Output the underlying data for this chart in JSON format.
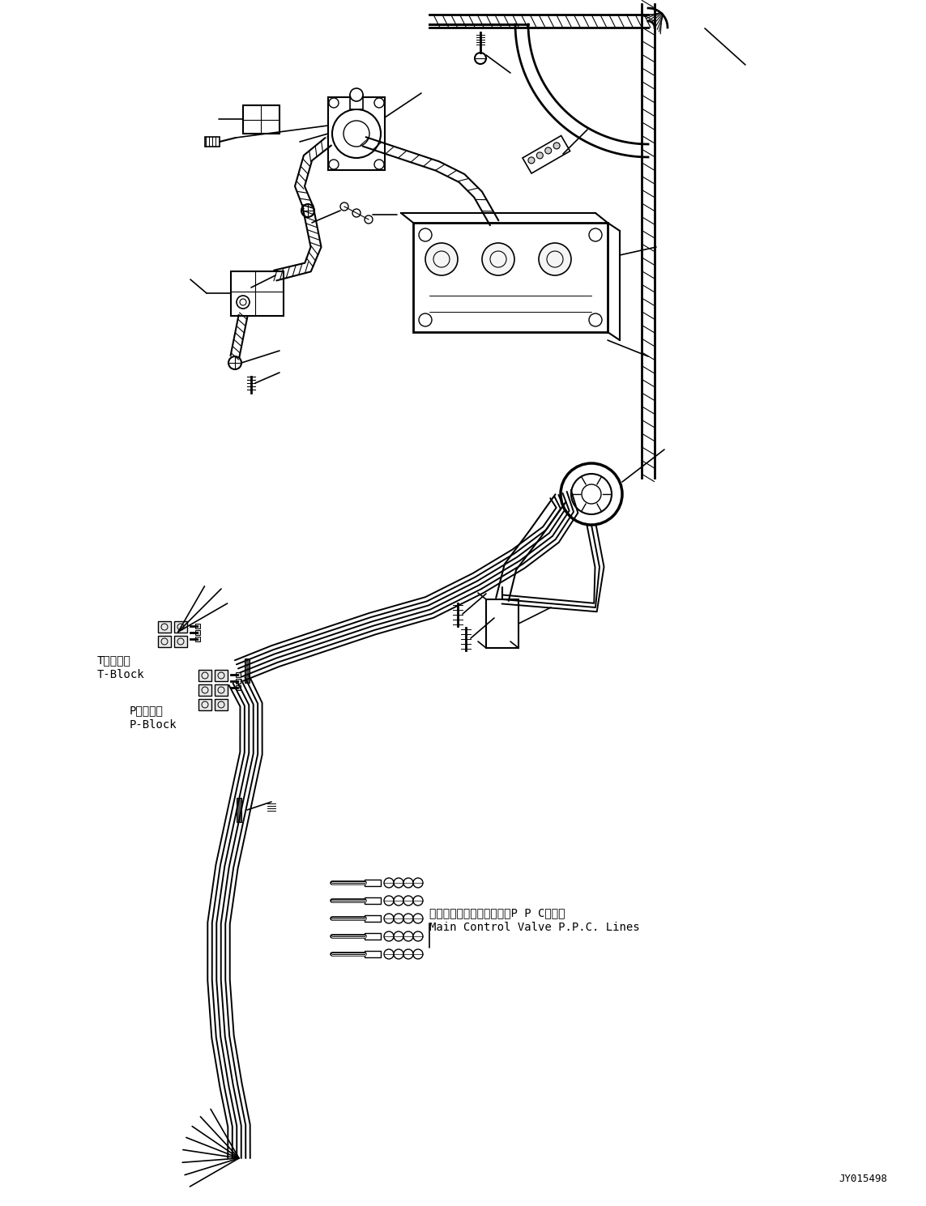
{
  "background_color": "#ffffff",
  "fig_width": 11.43,
  "fig_height": 14.89,
  "dpi": 100,
  "part_number": "JY015498",
  "label_t_block_jp": "Tブロック",
  "label_t_block_en": "T-Block",
  "label_p_block_jp": "Pブロック",
  "label_p_block_en": "P-Block",
  "label_main_jp": "メインコントロールバルブP P Cライン",
  "label_main_en": "Main Control Valve P.P.C. Lines",
  "line_color": "#000000",
  "line_width": 1.2
}
